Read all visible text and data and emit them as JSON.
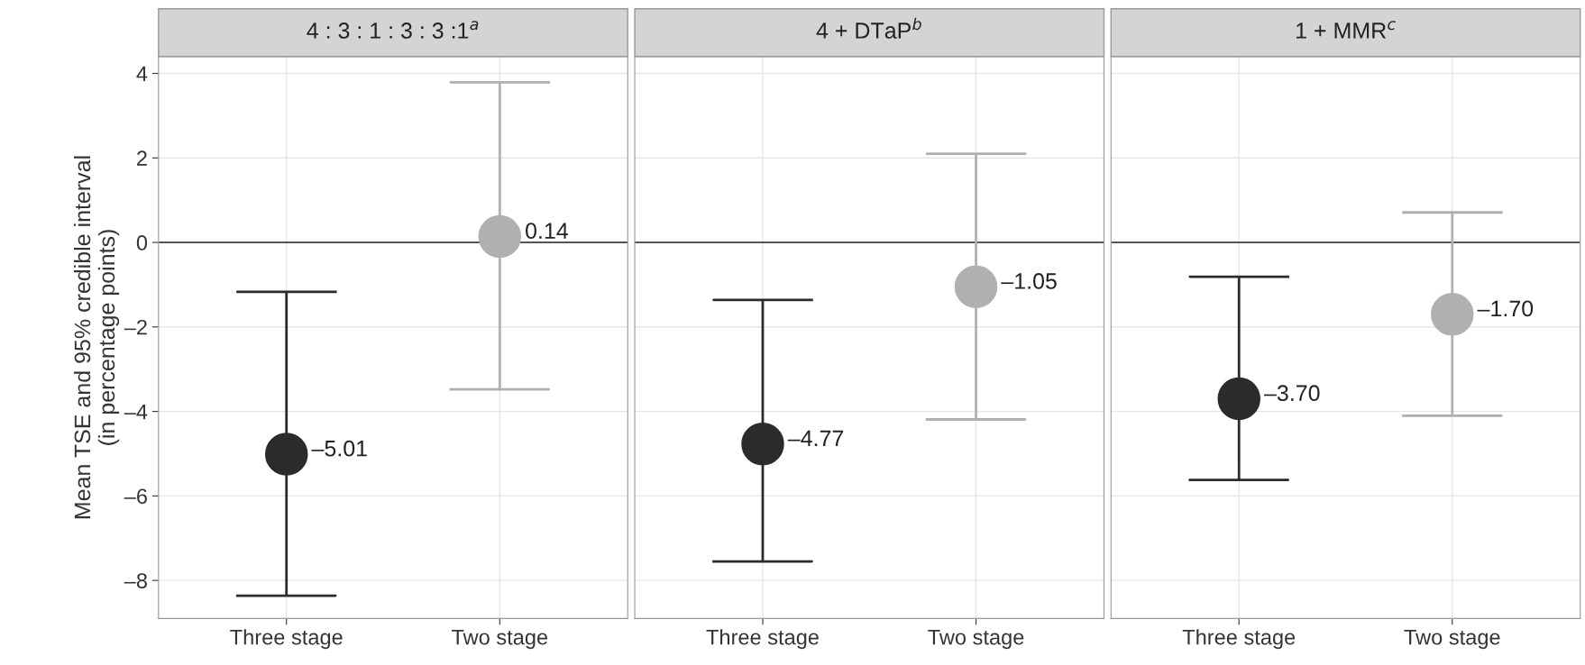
{
  "chart_data": [
    {
      "type": "scatter",
      "title": "4 : 3 : 1 : 3 : 3 :1$^{a}$",
      "ylabel": "Mean TSE and 95% credible interval\n(in percentage points)",
      "categories": [
        "Three stage",
        "Two stage"
      ],
      "values": [
        -5.01,
        0.14
      ],
      "colors": [
        "#2b2b2b",
        "#b0b0b0"
      ],
      "errors": [
        [
          -8.36,
          -1.17
        ],
        [
          -3.48,
          3.79
        ]
      ],
      "value_labels": [
        "–5.01",
        "0.14"
      ],
      "ylim": [
        -8.9,
        4.4
      ],
      "yticks": [
        {
          "value": -8,
          "label": "–8"
        },
        {
          "value": -6,
          "label": "–6"
        },
        {
          "value": -4,
          "label": "–4"
        },
        {
          "value": -2,
          "label": "–2"
        },
        0,
        2,
        4
      ],
      "ref_lines": [
        {
          "axis": "y",
          "value": 0,
          "color": "#555555"
        }
      ],
      "grid": true,
      "marker": "circle"
    },
    {
      "type": "scatter",
      "title": "4 + DTaP$^{b}$",
      "categories": [
        "Three stage",
        "Two stage"
      ],
      "values": [
        -4.77,
        -1.05
      ],
      "colors": [
        "#2b2b2b",
        "#b0b0b0"
      ],
      "errors": [
        [
          -7.55,
          -1.36
        ],
        [
          -4.19,
          2.1
        ]
      ],
      "value_labels": [
        "–4.77",
        "–1.05"
      ],
      "ylim": [
        -8.9,
        4.4
      ],
      "yticks": [
        -8,
        -6,
        -4,
        -2,
        0,
        2,
        4
      ],
      "tick_labels": "x",
      "ref_lines": [
        {
          "axis": "y",
          "value": 0,
          "color": "#555555"
        }
      ],
      "grid": true,
      "marker": "circle"
    },
    {
      "type": "scatter",
      "title": "1 + MMR$^{c}$",
      "categories": [
        "Three stage",
        "Two stage"
      ],
      "values": [
        -3.7,
        -1.7
      ],
      "colors": [
        "#2b2b2b",
        "#b0b0b0"
      ],
      "errors": [
        [
          -5.62,
          -0.81
        ],
        [
          -4.1,
          0.71
        ]
      ],
      "value_labels": [
        "–3.70",
        "–1.70"
      ],
      "ylim": [
        -8.9,
        4.4
      ],
      "yticks": [
        -8,
        -6,
        -4,
        -2,
        0,
        2,
        4
      ],
      "tick_labels": "x",
      "ref_lines": [
        {
          "axis": "y",
          "value": 0,
          "color": "#555555"
        }
      ],
      "grid": true,
      "marker": "circle"
    }
  ]
}
